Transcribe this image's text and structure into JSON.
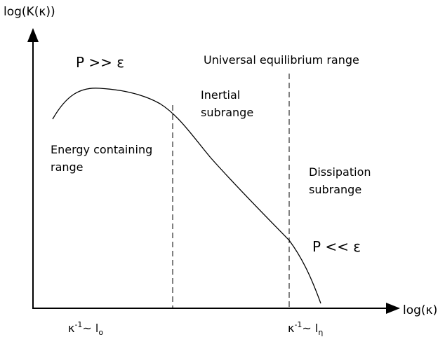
{
  "axes": {
    "y_label": "log(K(κ))",
    "x_label": "log(κ)"
  },
  "regions": {
    "production": "P >> ε",
    "universal": "Universal equilibrium range",
    "inertial": [
      "Inertial",
      "subrange"
    ],
    "energy": [
      "Energy containing",
      "range"
    ],
    "dissipation": [
      "Dissipation",
      "subrange"
    ],
    "dissipation_balance": "P << ε"
  },
  "markers": [
    {
      "base": "κ",
      "sup": "-1",
      "mid": "~ l",
      "sub": "o"
    },
    {
      "base": "κ",
      "sup": "-1",
      "mid": "~ l",
      "sub": "η"
    }
  ]
}
